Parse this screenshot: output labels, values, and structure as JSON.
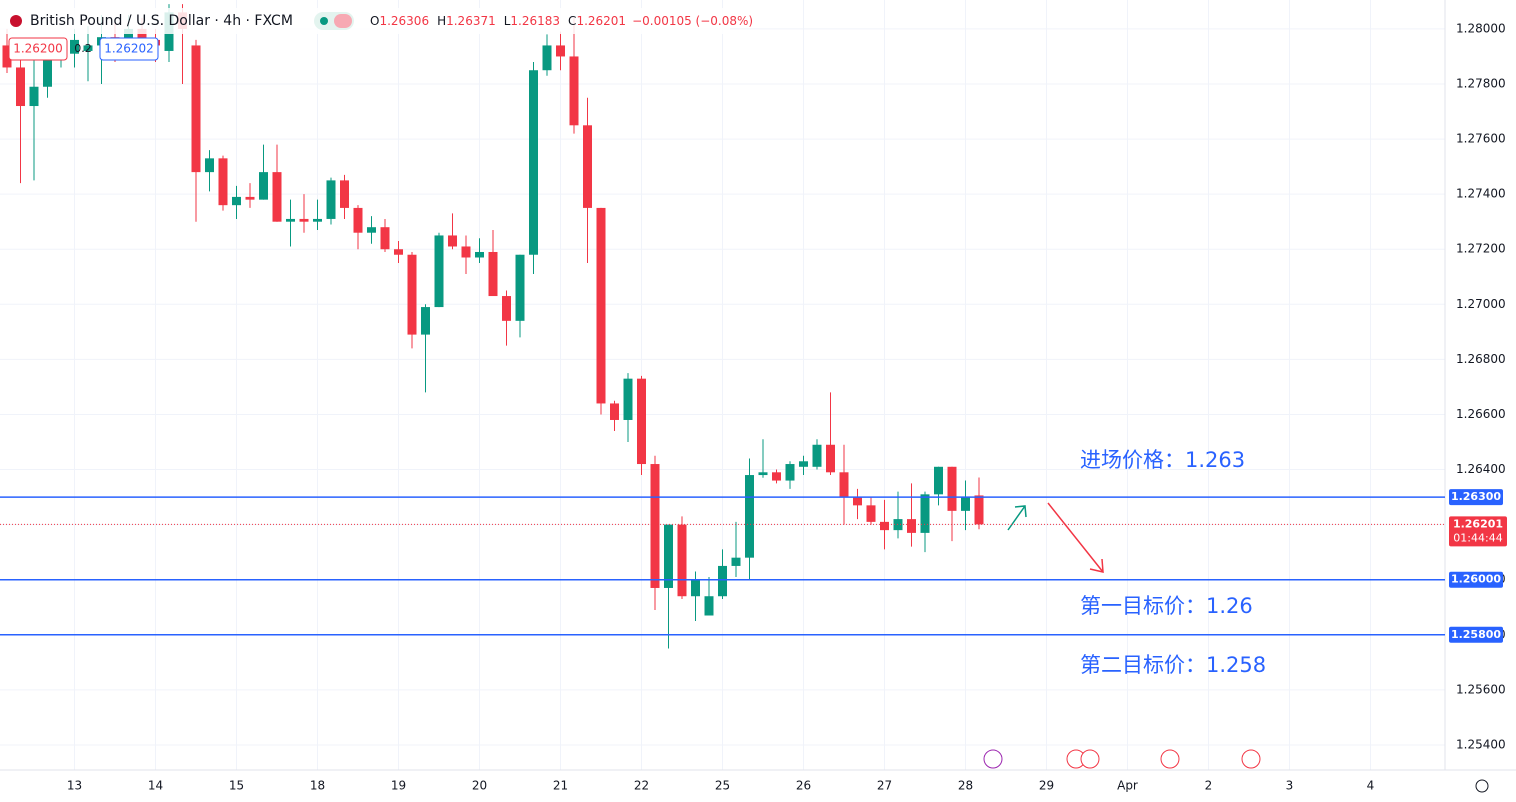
{
  "chart_data": {
    "type": "candlestick",
    "title": "British Pound / U.S. Dollar · 4h · FXCM",
    "ohlc_labels": [
      "O",
      "H",
      "L",
      "C"
    ],
    "ohlc_values": [
      1.26306,
      1.26371,
      1.26183,
      1.26201
    ],
    "change_label": "−0.00105 (−0.08%)",
    "bid": "1.26200",
    "spread": "0.2",
    "ask": "1.26202",
    "up_color": "#089981",
    "down_color": "#f23645",
    "open": [
      1.2794,
      1.2786,
      1.2772,
      1.2779,
      1.2789,
      1.2791,
      1.2792,
      1.2794,
      1.2797,
      1.2795,
      1.28,
      1.2796,
      1.2792,
      1.2806,
      1.2794,
      1.2748,
      1.2753,
      1.2736,
      1.2739,
      1.2738,
      1.2748,
      1.273,
      1.2731,
      1.273,
      1.2731,
      1.2745,
      1.2735,
      1.2726,
      1.2728,
      1.272,
      1.2718,
      1.2689,
      1.2699,
      1.2725,
      1.2721,
      1.2717,
      1.2719,
      1.2703,
      1.2694,
      1.2718,
      1.2785,
      1.2794,
      1.279,
      1.2765,
      1.2735,
      1.2664,
      1.2658,
      1.2673,
      1.2642,
      1.2597,
      1.262,
      1.2594,
      1.2587,
      1.2594,
      1.2605,
      1.2608,
      1.2638,
      1.2639,
      1.2636,
      1.2641,
      1.2641,
      1.2649,
      1.2639,
      1.263,
      1.2627,
      1.2621,
      1.2618,
      1.2622,
      1.2617,
      1.2631,
      1.2641,
      1.2625,
      1.26306
    ],
    "high": [
      1.28,
      1.2794,
      1.2792,
      1.2794,
      1.2795,
      1.28,
      1.2801,
      1.2805,
      1.2803,
      1.2805,
      1.2804,
      1.28,
      1.2809,
      1.2809,
      1.2796,
      1.2756,
      1.2754,
      1.2743,
      1.2744,
      1.2758,
      1.2758,
      1.2738,
      1.274,
      1.2738,
      1.2746,
      1.2747,
      1.2736,
      1.2732,
      1.2731,
      1.2723,
      1.2719,
      1.27,
      1.2726,
      1.2733,
      1.2725,
      1.2724,
      1.2727,
      1.2705,
      1.2718,
      1.2788,
      1.2798,
      1.2799,
      1.2804,
      1.2775,
      1.2735,
      1.2665,
      1.2675,
      1.2674,
      1.2645,
      1.262,
      1.2623,
      1.2603,
      1.2601,
      1.2611,
      1.2621,
      1.2644,
      1.2651,
      1.264,
      1.2643,
      1.2645,
      1.2651,
      1.2668,
      1.2649,
      1.2633,
      1.263,
      1.2629,
      1.2632,
      1.2635,
      1.2632,
      1.2641,
      1.2641,
      1.2636,
      1.26371
    ],
    "low": [
      1.2784,
      1.2744,
      1.2745,
      1.2775,
      1.2786,
      1.2786,
      1.2781,
      1.278,
      1.2788,
      1.2793,
      1.279,
      1.2788,
      1.2788,
      1.278,
      1.273,
      1.2741,
      1.2734,
      1.2731,
      1.2735,
      1.2738,
      1.273,
      1.2721,
      1.2726,
      1.2727,
      1.2729,
      1.2731,
      1.272,
      1.2722,
      1.2719,
      1.2715,
      1.2684,
      1.2668,
      1.2699,
      1.272,
      1.2711,
      1.2715,
      1.2703,
      1.2685,
      1.2688,
      1.2711,
      1.2783,
      1.2785,
      1.2762,
      1.2715,
      1.266,
      1.2654,
      1.265,
      1.2638,
      1.2589,
      1.2575,
      1.2593,
      1.2585,
      1.2587,
      1.2593,
      1.2601,
      1.26,
      1.2637,
      1.2635,
      1.2633,
      1.2638,
      1.264,
      1.2638,
      1.262,
      1.2622,
      1.262,
      1.2611,
      1.2615,
      1.2612,
      1.261,
      1.2627,
      1.2614,
      1.2618,
      1.26183
    ],
    "close": [
      1.2786,
      1.2772,
      1.2779,
      1.2789,
      1.2791,
      1.2796,
      1.2794,
      1.2797,
      1.2795,
      1.28,
      1.2795,
      1.2794,
      1.2806,
      1.28,
      1.2748,
      1.2753,
      1.2736,
      1.2739,
      1.2738,
      1.2748,
      1.273,
      1.2731,
      1.273,
      1.2731,
      1.2745,
      1.2735,
      1.2726,
      1.2728,
      1.272,
      1.2718,
      1.2689,
      1.2699,
      1.2725,
      1.2721,
      1.2717,
      1.2719,
      1.2703,
      1.2694,
      1.2718,
      1.2785,
      1.2794,
      1.279,
      1.2765,
      1.2735,
      1.2664,
      1.2658,
      1.2673,
      1.2642,
      1.2597,
      1.262,
      1.2594,
      1.26,
      1.2594,
      1.2605,
      1.2608,
      1.2638,
      1.2639,
      1.2636,
      1.2642,
      1.2643,
      1.2649,
      1.2639,
      1.263,
      1.2627,
      1.2621,
      1.2618,
      1.2622,
      1.2617,
      1.2631,
      1.2641,
      1.2625,
      1.263,
      1.26201
    ],
    "xticks": [
      "13",
      "14",
      "15",
      "18",
      "19",
      "20",
      "21",
      "22",
      "25",
      "26",
      "27",
      "28",
      "29",
      "Apr",
      "2",
      "3",
      "4"
    ],
    "ylim": [
      1.25309,
      1.28105
    ],
    "yticks": [
      {
        "value": 1.254,
        "label": "1.25400"
      },
      {
        "value": 1.256,
        "label": "1.25600"
      },
      {
        "value": 1.258,
        "label": "1.25800"
      },
      {
        "value": 1.26,
        "label": "1.26000"
      },
      {
        "value": 1.262,
        "label": "1.26200"
      },
      {
        "value": 1.264,
        "label": "1.26400"
      },
      {
        "value": 1.266,
        "label": "1.26600"
      },
      {
        "value": 1.268,
        "label": "1.26800"
      },
      {
        "value": 1.27,
        "label": "1.27000"
      },
      {
        "value": 1.272,
        "label": "1.27200"
      },
      {
        "value": 1.274,
        "label": "1.27400"
      },
      {
        "value": 1.276,
        "label": "1.27600"
      },
      {
        "value": 1.278,
        "label": "1.27800"
      },
      {
        "value": 1.28,
        "label": "1.28000"
      }
    ],
    "grid": true,
    "hlines": [
      {
        "value": 1.263,
        "label": "1.26300",
        "color": "#2962ff"
      },
      {
        "value": 1.26,
        "label": "1.26000",
        "color": "#2962ff"
      },
      {
        "value": 1.258,
        "label": "1.25800",
        "color": "#2962ff"
      }
    ],
    "last_price": {
      "value": 1.26201,
      "label": "1.26201",
      "countdown": "01:44:44",
      "color": "#f23645"
    },
    "annotations": [
      "进场价格：1.263",
      "第一目标价：1.26",
      "第二目标价：1.258"
    ]
  }
}
